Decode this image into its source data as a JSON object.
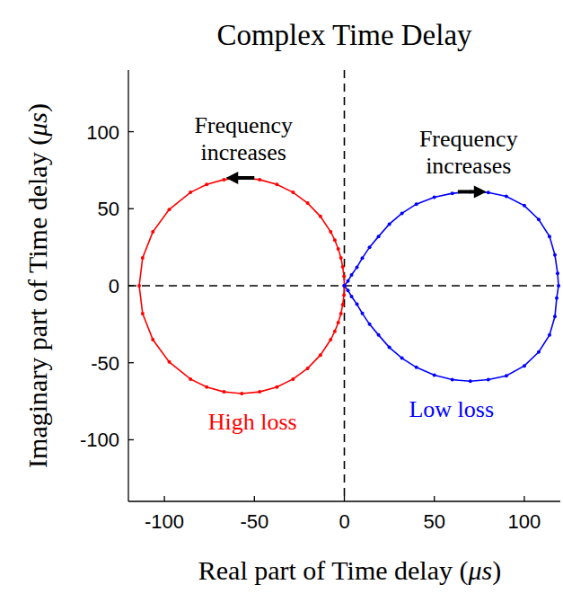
{
  "chart_data": {
    "type": "scatter",
    "title": "Complex Time Delay",
    "x_label": "Real part of Time delay (μs)",
    "y_label": "Imaginary part of Time delay (μs)",
    "xlim": [
      -120,
      120
    ],
    "ylim": [
      -140,
      140
    ],
    "xticks": [
      -100,
      -50,
      0,
      50,
      100
    ],
    "yticks": [
      -100,
      -50,
      0,
      50,
      100
    ],
    "grid": false,
    "annotations": [
      {
        "lines": [
          "Frequency",
          "increases"
        ],
        "series": 0
      },
      {
        "lines": [
          "Frequency",
          "increases"
        ],
        "series": 1
      }
    ],
    "series": [
      {
        "name": "High loss",
        "color": "#ff0000",
        "marker": "dot",
        "line_style": "solid",
        "x": [
          0,
          -0.2,
          -0.9,
          -1.9,
          -3.4,
          -5.3,
          -7.6,
          -13.3,
          -20.4,
          -28.5,
          -37.5,
          -47.1,
          -57,
          -66.9,
          -76.5,
          -85.5,
          -97.3,
          -106.4,
          -112.1,
          -114,
          -112.1,
          -106.4,
          -97.3,
          -85.5,
          -76.5,
          -66.9,
          -57,
          -47.1,
          -37.5,
          -28.5,
          -20.4,
          -13.3,
          -7.6,
          -5.3,
          -3.4,
          -1.9,
          -0.9,
          -0.2,
          0
        ],
        "values": [
          0,
          6.1,
          12.2,
          18.1,
          23.9,
          29.6,
          35,
          45,
          53.6,
          60.6,
          65.8,
          68.9,
          70,
          68.9,
          65.8,
          60.6,
          49.5,
          35,
          18.1,
          0,
          -18.1,
          -35,
          -49.5,
          -60.6,
          -65.8,
          -68.9,
          -70,
          -68.9,
          -65.8,
          -60.6,
          -53.6,
          -45,
          -35,
          -29.6,
          -23.9,
          -18.1,
          -12.2,
          -6.1,
          0
        ]
      },
      {
        "name": "Low loss",
        "color": "#0000ff",
        "marker": "dot",
        "line_style": "solid",
        "x": [
          0,
          2,
          4,
          7,
          10,
          14,
          19,
          25,
          32,
          40,
          50,
          60,
          70,
          80,
          90,
          100,
          108,
          114,
          117,
          118.5,
          119,
          118,
          117,
          114,
          108,
          100,
          90,
          80,
          70,
          60,
          50,
          40,
          32,
          25,
          19,
          14,
          10,
          7,
          4,
          2,
          0
        ],
        "values": [
          0,
          3,
          7,
          12,
          18,
          25,
          32,
          40,
          47,
          53,
          57.5,
          60,
          61,
          60.5,
          58,
          52,
          43,
          32,
          20,
          8,
          0,
          -8,
          -20,
          -32,
          -43,
          -52,
          -58.5,
          -61,
          -62,
          -61,
          -58,
          -53,
          -47,
          -40,
          -32,
          -25,
          -18,
          -12,
          -7,
          -3,
          0
        ]
      }
    ]
  }
}
